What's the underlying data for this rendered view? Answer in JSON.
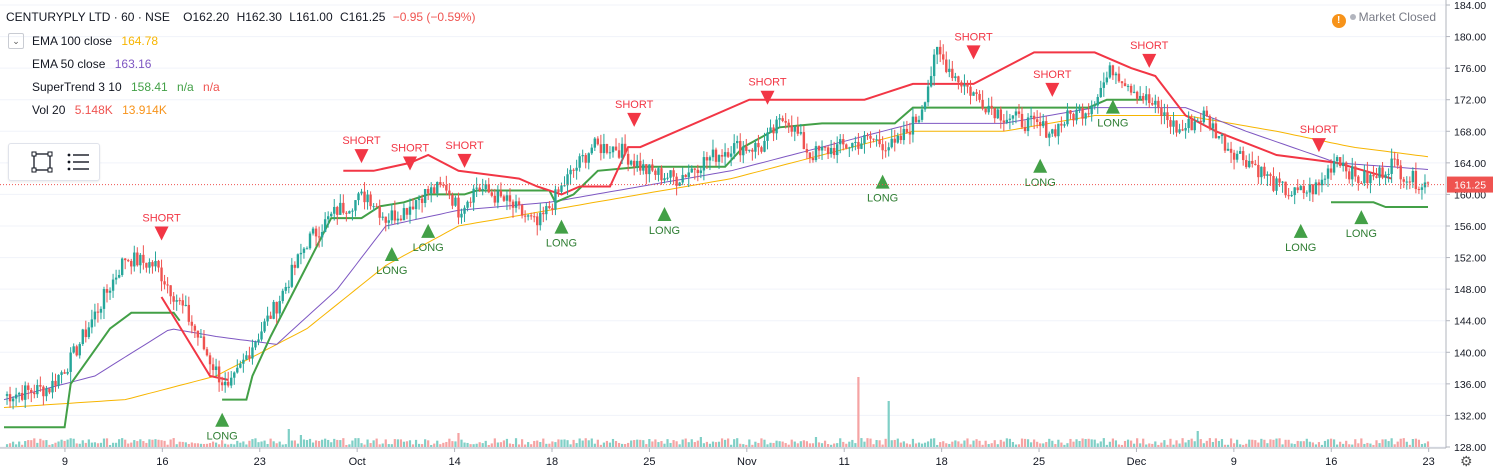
{
  "header": {
    "symbol": "CENTURYPLY LTD · 60 · NSE",
    "open": "O162.20",
    "high": "H162.30",
    "low": "L161.00",
    "close": "C161.25",
    "change": "−0.95 (−0.59%)"
  },
  "market_status": "Market Closed",
  "indicators": [
    {
      "label": "EMA 100 close",
      "value": "164.78",
      "color": "#f7b500"
    },
    {
      "label": "EMA 50 close",
      "value": "163.16",
      "color": "#7e57c2"
    },
    {
      "label": "SuperTrend 3 10",
      "value": "158.41",
      "extra": "n/a",
      "extra2": "n/a",
      "color": "#43a047",
      "color2": "#ef5350"
    },
    {
      "label": "Vol 20",
      "value": "5.148K",
      "extra": "13.914K",
      "color": "#ef5350",
      "color2": "#f7931a"
    }
  ],
  "colors": {
    "up": "#26a69a",
    "down": "#ef5350",
    "ema100": "#f7b500",
    "ema50": "#7e57c2",
    "st_up": "#43a047",
    "st_down": "#f23645",
    "vol_up": "#7fcfc6",
    "vol_down": "#f5a3a3"
  },
  "chart_data": {
    "type": "candlestick",
    "y_axis": {
      "min": 128,
      "max": 184,
      "ticks": [
        "128.00",
        "132.00",
        "136.00",
        "140.00",
        "144.00",
        "148.00",
        "152.00",
        "156.00",
        "160.00",
        "164.00",
        "168.00",
        "172.00",
        "176.00",
        "180.00",
        "184.00"
      ]
    },
    "x_ticks": [
      {
        "label": "9",
        "t": 0.034
      },
      {
        "label": "16",
        "t": 0.085
      },
      {
        "label": "23",
        "t": 0.136
      },
      {
        "label": "Oct",
        "t": 0.187
      },
      {
        "label": "14",
        "t": 0.238
      },
      {
        "label": "18",
        "t": 0.289
      },
      {
        "label": "25",
        "t": 0.34
      },
      {
        "label": "Nov",
        "t": 0.391
      },
      {
        "label": "11",
        "t": 0.442
      },
      {
        "label": "18",
        "t": 0.493
      },
      {
        "label": "25",
        "t": 0.544
      },
      {
        "label": "Dec",
        "t": 0.595
      },
      {
        "label": "9",
        "t": 0.646
      },
      {
        "label": "16",
        "t": 0.697
      },
      {
        "label": "23",
        "t": 0.748
      }
    ],
    "last_price": "161.25",
    "close_anchors": [
      [
        0,
        134.5
      ],
      [
        15,
        135.5
      ],
      [
        22,
        139
      ],
      [
        40,
        152
      ],
      [
        50,
        151
      ],
      [
        60,
        145
      ],
      [
        68,
        139
      ],
      [
        74,
        135
      ],
      [
        82,
        141
      ],
      [
        90,
        146
      ],
      [
        100,
        154
      ],
      [
        110,
        158
      ],
      [
        120,
        160
      ],
      [
        126,
        157
      ],
      [
        132,
        158
      ],
      [
        138,
        160
      ],
      [
        146,
        161
      ],
      [
        150,
        158
      ],
      [
        156,
        161
      ],
      [
        166,
        159
      ],
      [
        176,
        156
      ],
      [
        186,
        162
      ],
      [
        194,
        166
      ],
      [
        202,
        166
      ],
      [
        212,
        163
      ],
      [
        222,
        162
      ],
      [
        230,
        164
      ],
      [
        240,
        166
      ],
      [
        250,
        166
      ],
      [
        258,
        170
      ],
      [
        266,
        165
      ],
      [
        276,
        166
      ],
      [
        286,
        167
      ],
      [
        294,
        166
      ],
      [
        302,
        170
      ],
      [
        308,
        178
      ],
      [
        314,
        175
      ],
      [
        322,
        172
      ],
      [
        330,
        170
      ],
      [
        338,
        169
      ],
      [
        346,
        168
      ],
      [
        352,
        170
      ],
      [
        358,
        171
      ],
      [
        366,
        176
      ],
      [
        374,
        173
      ],
      [
        380,
        171
      ],
      [
        388,
        168
      ],
      [
        396,
        170
      ],
      [
        404,
        166
      ],
      [
        412,
        164
      ],
      [
        420,
        161
      ],
      [
        426,
        160
      ],
      [
        434,
        161
      ],
      [
        440,
        165
      ],
      [
        446,
        162
      ],
      [
        452,
        162
      ],
      [
        458,
        164
      ],
      [
        464,
        162
      ],
      [
        470,
        161.25
      ]
    ],
    "ema100_anchors": [
      [
        0,
        133
      ],
      [
        40,
        134
      ],
      [
        70,
        137
      ],
      [
        100,
        143
      ],
      [
        126,
        151
      ],
      [
        150,
        156
      ],
      [
        180,
        158
      ],
      [
        210,
        160
      ],
      [
        240,
        162
      ],
      [
        270,
        165
      ],
      [
        300,
        168
      ],
      [
        330,
        168
      ],
      [
        360,
        170
      ],
      [
        390,
        170
      ],
      [
        420,
        168
      ],
      [
        445,
        166
      ],
      [
        470,
        164.78
      ]
    ],
    "ema50_anchors": [
      [
        0,
        134
      ],
      [
        30,
        137
      ],
      [
        55,
        143
      ],
      [
        70,
        142
      ],
      [
        90,
        141
      ],
      [
        110,
        148
      ],
      [
        126,
        156
      ],
      [
        150,
        158
      ],
      [
        180,
        159
      ],
      [
        210,
        161
      ],
      [
        240,
        163
      ],
      [
        270,
        166
      ],
      [
        300,
        169
      ],
      [
        330,
        169
      ],
      [
        360,
        171
      ],
      [
        390,
        171
      ],
      [
        410,
        168
      ],
      [
        440,
        164
      ],
      [
        470,
        163.16
      ]
    ],
    "supertrend": [
      {
        "dir": "up",
        "pts": [
          [
            0,
            130.5
          ],
          [
            20,
            130.5
          ],
          [
            22,
            136
          ],
          [
            35,
            143
          ],
          [
            42,
            145
          ],
          [
            56,
            145
          ],
          [
            58,
            144
          ]
        ]
      },
      {
        "dir": "down",
        "pts": [
          [
            52,
            147
          ],
          [
            60,
            142
          ],
          [
            68,
            137
          ],
          [
            74,
            136.5
          ]
        ]
      },
      {
        "dir": "up",
        "pts": [
          [
            72,
            134
          ],
          [
            80,
            134
          ],
          [
            82,
            137
          ],
          [
            88,
            142
          ],
          [
            100,
            151
          ],
          [
            108,
            157
          ],
          [
            118,
            157
          ],
          [
            124,
            158.5
          ],
          [
            132,
            159
          ],
          [
            140,
            160
          ],
          [
            152,
            160
          ],
          [
            156,
            160.5
          ],
          [
            166,
            160.5
          ],
          [
            180,
            160.5
          ],
          [
            182,
            159
          ],
          [
            188,
            160
          ],
          [
            196,
            163
          ],
          [
            210,
            163.5
          ],
          [
            236,
            163.5
          ],
          [
            238,
            163.5
          ],
          [
            244,
            166
          ],
          [
            256,
            168.5
          ],
          [
            270,
            169
          ],
          [
            292,
            169
          ],
          [
            294,
            169
          ],
          [
            300,
            171
          ],
          [
            320,
            171
          ],
          [
            346,
            171
          ],
          [
            358,
            171
          ],
          [
            364,
            172
          ],
          [
            376,
            172
          ]
        ]
      },
      {
        "dir": "down",
        "pts": [
          [
            112,
            163
          ],
          [
            122,
            163
          ],
          [
            134,
            164
          ],
          [
            140,
            165
          ],
          [
            150,
            163
          ],
          [
            170,
            162
          ],
          [
            176,
            161
          ],
          [
            184,
            160
          ],
          [
            190,
            161
          ],
          [
            200,
            161
          ],
          [
            206,
            166
          ],
          [
            210,
            166
          ],
          [
            246,
            172
          ],
          [
            270,
            172
          ],
          [
            282,
            172
          ],
          [
            284,
            172
          ],
          [
            300,
            174
          ],
          [
            320,
            174
          ],
          [
            340,
            178
          ],
          [
            360,
            178
          ],
          [
            372,
            176
          ],
          [
            380,
            175
          ],
          [
            390,
            170
          ],
          [
            400,
            168
          ],
          [
            420,
            165
          ],
          [
            440,
            164
          ],
          [
            458,
            162
          ]
        ]
      },
      {
        "dir": "up",
        "pts": [
          [
            438,
            159
          ],
          [
            452,
            159
          ],
          [
            456,
            158.41
          ],
          [
            470,
            158.41
          ]
        ]
      }
    ],
    "signals": [
      {
        "type": "LONG",
        "bar": 72
      },
      {
        "type": "SHORT",
        "bar": 52
      },
      {
        "type": "SHORT",
        "bar": 118
      },
      {
        "type": "LONG",
        "bar": 128
      },
      {
        "type": "SHORT",
        "bar": 134
      },
      {
        "type": "LONG",
        "bar": 140
      },
      {
        "type": "SHORT",
        "bar": 152
      },
      {
        "type": "LONG",
        "bar": 184
      },
      {
        "type": "SHORT",
        "bar": 208
      },
      {
        "type": "LONG",
        "bar": 218
      },
      {
        "type": "SHORT",
        "bar": 252
      },
      {
        "type": "LONG",
        "bar": 290
      },
      {
        "type": "SHORT",
        "bar": 320
      },
      {
        "type": "LONG",
        "bar": 342
      },
      {
        "type": "SHORT",
        "bar": 346
      },
      {
        "type": "LONG",
        "bar": 366
      },
      {
        "type": "SHORT",
        "bar": 378
      },
      {
        "type": "LONG",
        "bar": 428
      },
      {
        "type": "SHORT",
        "bar": 434
      },
      {
        "type": "LONG",
        "bar": 448
      }
    ],
    "volume_spikes": [
      [
        94,
        18
      ],
      [
        98,
        12
      ],
      [
        150,
        14
      ],
      [
        230,
        10
      ],
      [
        268,
        10
      ],
      [
        282,
        70
      ],
      [
        292,
        46
      ],
      [
        394,
        16
      ]
    ]
  },
  "tools": [
    {
      "name": "rectangle-select-tool"
    },
    {
      "name": "lines-list-tool"
    }
  ]
}
